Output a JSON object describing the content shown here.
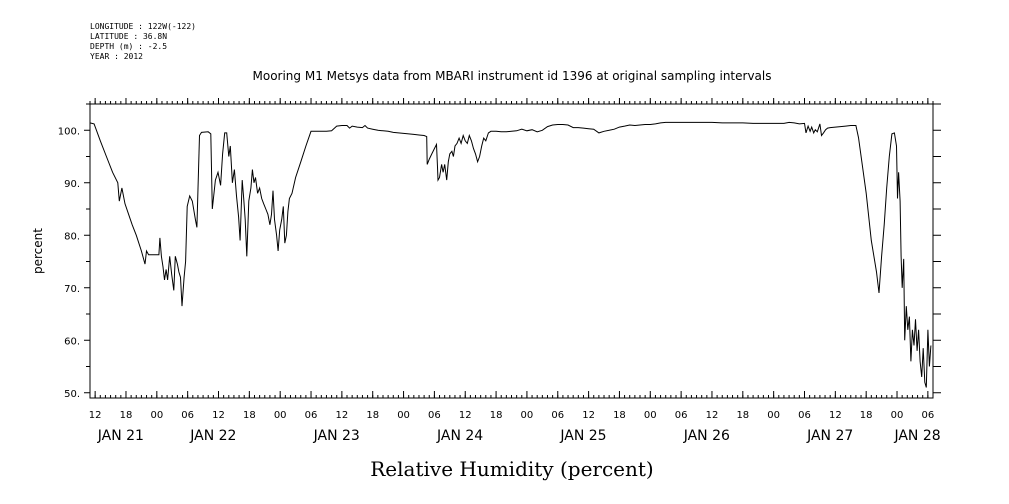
{
  "meta": {
    "longitude": "LONGITUDE : 122W(-122)",
    "latitude": "LATITUDE : 36.8N",
    "depth": "DEPTH (m) : -2.5",
    "year": "YEAR : 2012"
  },
  "chart_data": {
    "type": "line",
    "title": "Mooring M1 Metsys data from MBARI instrument id 1396 at original sampling intervals",
    "xlabel": "Relative Humidity (percent)",
    "ylabel": "percent",
    "ylim": [
      49,
      105
    ],
    "yticks": [
      50,
      60,
      70,
      80,
      90,
      100
    ],
    "ytick_labels": [
      "50.",
      "60.",
      "70.",
      "80.",
      "90.",
      "100."
    ],
    "xlim_hours_note": "x values are hours since JAN 21 00:00",
    "xlim": [
      -13,
      151
    ],
    "hour_ticks": [
      {
        "x": -12,
        "label": "12"
      },
      {
        "x": -6,
        "label": "18"
      },
      {
        "x": 0,
        "label": "00"
      },
      {
        "x": 6,
        "label": "06"
      },
      {
        "x": 12,
        "label": "12"
      },
      {
        "x": 18,
        "label": "18"
      },
      {
        "x": 24,
        "label": "00"
      },
      {
        "x": 30,
        "label": "06"
      },
      {
        "x": 36,
        "label": "12"
      },
      {
        "x": 42,
        "label": "18"
      },
      {
        "x": 48,
        "label": "00"
      },
      {
        "x": 54,
        "label": "06"
      },
      {
        "x": 60,
        "label": "12"
      },
      {
        "x": 66,
        "label": "18"
      },
      {
        "x": 72,
        "label": "00"
      },
      {
        "x": 78,
        "label": "06"
      },
      {
        "x": 84,
        "label": "12"
      },
      {
        "x": 90,
        "label": "18"
      },
      {
        "x": 96,
        "label": "00"
      },
      {
        "x": 102,
        "label": "06"
      },
      {
        "x": 108,
        "label": "12"
      },
      {
        "x": 114,
        "label": "18"
      },
      {
        "x": 120,
        "label": "00"
      },
      {
        "x": 126,
        "label": "06"
      },
      {
        "x": 132,
        "label": "12"
      },
      {
        "x": 138,
        "label": "18"
      },
      {
        "x": 144,
        "label": "00"
      },
      {
        "x": 150,
        "label": "06"
      }
    ],
    "day_labels": [
      {
        "x": -7,
        "label": "JAN 21"
      },
      {
        "x": 11,
        "label": "JAN 22"
      },
      {
        "x": 35,
        "label": "JAN 23"
      },
      {
        "x": 59,
        "label": "JAN 24"
      },
      {
        "x": 83,
        "label": "JAN 25"
      },
      {
        "x": 107,
        "label": "JAN 26"
      },
      {
        "x": 131,
        "label": "JAN 27"
      },
      {
        "x": 148,
        "label": "JAN 28"
      }
    ],
    "series": [
      {
        "color": "#000000",
        "points": [
          [
            -13,
            101.4
          ],
          [
            -12.2,
            101.2
          ],
          [
            -11,
            98
          ],
          [
            -9.8,
            95
          ],
          [
            -8.6,
            92
          ],
          [
            -7.6,
            90
          ],
          [
            -7.3,
            86.5
          ],
          [
            -6.8,
            89
          ],
          [
            -6.2,
            86
          ],
          [
            -5.5,
            84
          ],
          [
            -4.8,
            82
          ],
          [
            -4,
            80
          ],
          [
            -3,
            77
          ],
          [
            -2.3,
            74.5
          ],
          [
            -2,
            77
          ],
          [
            -1.6,
            76.3
          ],
          [
            -1,
            76.3
          ],
          [
            0,
            76.3
          ],
          [
            0.4,
            76.3
          ],
          [
            0.6,
            79.5
          ],
          [
            0.9,
            76
          ],
          [
            1.2,
            74
          ],
          [
            1.5,
            71.5
          ],
          [
            1.8,
            73.5
          ],
          [
            2.1,
            71.5
          ],
          [
            2.5,
            76
          ],
          [
            2.9,
            72.5
          ],
          [
            3.3,
            69.5
          ],
          [
            3.6,
            76
          ],
          [
            4,
            74.5
          ],
          [
            4.3,
            73
          ],
          [
            4.6,
            72
          ],
          [
            4.9,
            66.5
          ],
          [
            5.3,
            72
          ],
          [
            5.6,
            75
          ],
          [
            5.9,
            85.5
          ],
          [
            6.4,
            87.5
          ],
          [
            6.9,
            86.5
          ],
          [
            7.5,
            83
          ],
          [
            7.8,
            81.5
          ],
          [
            8.3,
            99
          ],
          [
            8.7,
            99.6
          ],
          [
            10,
            99.7
          ],
          [
            10.5,
            99.3
          ],
          [
            10.8,
            85
          ],
          [
            11.4,
            90.5
          ],
          [
            11.9,
            92
          ],
          [
            12.4,
            89.5
          ],
          [
            12.8,
            95.5
          ],
          [
            13.2,
            99.5
          ],
          [
            13.6,
            99.5
          ],
          [
            14,
            95
          ],
          [
            14.3,
            97
          ],
          [
            14.7,
            90
          ],
          [
            15.1,
            92.5
          ],
          [
            15.5,
            87.5
          ],
          [
            15.9,
            83.5
          ],
          [
            16.2,
            79
          ],
          [
            16.6,
            90.5
          ],
          [
            16.9,
            87
          ],
          [
            17.2,
            83
          ],
          [
            17.5,
            76
          ],
          [
            17.9,
            86.5
          ],
          [
            18.3,
            89
          ],
          [
            18.6,
            92.5
          ],
          [
            18.9,
            90
          ],
          [
            19.2,
            91
          ],
          [
            19.6,
            88
          ],
          [
            20,
            89
          ],
          [
            20.4,
            87
          ],
          [
            20.8,
            86
          ],
          [
            21.2,
            85
          ],
          [
            21.6,
            84
          ],
          [
            22,
            82
          ],
          [
            22.3,
            84
          ],
          [
            22.6,
            88.5
          ],
          [
            22.9,
            83
          ],
          [
            23.3,
            80
          ],
          [
            23.6,
            77
          ],
          [
            23.9,
            81
          ],
          [
            24.3,
            83
          ],
          [
            24.6,
            85.5
          ],
          [
            24.9,
            78.5
          ],
          [
            25.2,
            80
          ],
          [
            25.5,
            84.5
          ],
          [
            25.8,
            87
          ],
          [
            26.3,
            88
          ],
          [
            27,
            91
          ],
          [
            28,
            94
          ],
          [
            29,
            97
          ],
          [
            30,
            99.8
          ],
          [
            31,
            99.8
          ],
          [
            32,
            99.8
          ],
          [
            33,
            99.8
          ],
          [
            34,
            99.9
          ],
          [
            35,
            100.8
          ],
          [
            36,
            100.9
          ],
          [
            37,
            100.9
          ],
          [
            37.5,
            100.4
          ],
          [
            38,
            100.8
          ],
          [
            39,
            100.6
          ],
          [
            40,
            100.5
          ],
          [
            40.5,
            100.9
          ],
          [
            41,
            100.4
          ],
          [
            42,
            100.2
          ],
          [
            43,
            100
          ],
          [
            44,
            99.9
          ],
          [
            45,
            99.8
          ],
          [
            46,
            99.6
          ],
          [
            47,
            99.5
          ],
          [
            48,
            99.4
          ],
          [
            49,
            99.3
          ],
          [
            50,
            99.2
          ],
          [
            51,
            99.1
          ],
          [
            52,
            99
          ],
          [
            52.5,
            98.8
          ],
          [
            52.6,
            93.5
          ],
          [
            53,
            94.5
          ],
          [
            53.5,
            95.5
          ],
          [
            54,
            96.5
          ],
          [
            54.4,
            97.3
          ],
          [
            54.6,
            93
          ],
          [
            54.7,
            90.5
          ],
          [
            55,
            91
          ],
          [
            55.4,
            93.5
          ],
          [
            55.7,
            92
          ],
          [
            56,
            93.5
          ],
          [
            56.4,
            90.5
          ],
          [
            56.7,
            94
          ],
          [
            57,
            95.5
          ],
          [
            57.4,
            96
          ],
          [
            57.7,
            95
          ],
          [
            58,
            97
          ],
          [
            58.4,
            97.5
          ],
          [
            58.8,
            98.5
          ],
          [
            59.2,
            97.5
          ],
          [
            59.6,
            99
          ],
          [
            60,
            98
          ],
          [
            60.4,
            97.5
          ],
          [
            60.8,
            99
          ],
          [
            61.2,
            98
          ],
          [
            61.6,
            96.5
          ],
          [
            62,
            95.5
          ],
          [
            62.4,
            94
          ],
          [
            62.8,
            95
          ],
          [
            63.2,
            97
          ],
          [
            63.6,
            98.5
          ],
          [
            64,
            98
          ],
          [
            64.5,
            99.5
          ],
          [
            65,
            99.8
          ],
          [
            66,
            99.8
          ],
          [
            67,
            99.7
          ],
          [
            68,
            99.7
          ],
          [
            69,
            99.8
          ],
          [
            70,
            99.9
          ],
          [
            71,
            100.2
          ],
          [
            72,
            99.9
          ],
          [
            73,
            100.1
          ],
          [
            74,
            99.7
          ],
          [
            75,
            100
          ],
          [
            76,
            100.7
          ],
          [
            77,
            101
          ],
          [
            78,
            101.1
          ],
          [
            79,
            101.1
          ],
          [
            80,
            101
          ],
          [
            81,
            100.5
          ],
          [
            82,
            100.5
          ],
          [
            83,
            100.4
          ],
          [
            84,
            100.3
          ],
          [
            85,
            100.2
          ],
          [
            86,
            99.5
          ],
          [
            87,
            99.8
          ],
          [
            88,
            100
          ],
          [
            89,
            100.2
          ],
          [
            90,
            100.6
          ],
          [
            91,
            100.8
          ],
          [
            92,
            101
          ],
          [
            93,
            100.9
          ],
          [
            94,
            101
          ],
          [
            95,
            101.1
          ],
          [
            96,
            101.1
          ],
          [
            97,
            101.2
          ],
          [
            98,
            101.4
          ],
          [
            99,
            101.5
          ],
          [
            100,
            101.5
          ],
          [
            102,
            101.5
          ],
          [
            104,
            101.5
          ],
          [
            106,
            101.5
          ],
          [
            108,
            101.5
          ],
          [
            110,
            101.4
          ],
          [
            112,
            101.4
          ],
          [
            114,
            101.4
          ],
          [
            116,
            101.3
          ],
          [
            118,
            101.3
          ],
          [
            120,
            101.3
          ],
          [
            122,
            101.3
          ],
          [
            123,
            101.5
          ],
          [
            124,
            101.4
          ],
          [
            125,
            101.2
          ],
          [
            126,
            101.3
          ],
          [
            126.3,
            99.5
          ],
          [
            126.7,
            100.8
          ],
          [
            127.1,
            99.8
          ],
          [
            127.4,
            100.6
          ],
          [
            127.8,
            99.5
          ],
          [
            128.1,
            100.1
          ],
          [
            128.5,
            99.7
          ],
          [
            129,
            101.2
          ],
          [
            129.3,
            99
          ],
          [
            129.7,
            99.5
          ],
          [
            130.1,
            100.1
          ],
          [
            130.5,
            100.4
          ],
          [
            131,
            100.5
          ],
          [
            132,
            100.6
          ],
          [
            133,
            100.7
          ],
          [
            134,
            100.8
          ],
          [
            135,
            100.9
          ],
          [
            136,
            100.9
          ],
          [
            136.5,
            98.6
          ],
          [
            138,
            88
          ],
          [
            139,
            79
          ],
          [
            140,
            73
          ],
          [
            140.5,
            69
          ],
          [
            141,
            76
          ],
          [
            141.5,
            82
          ],
          [
            142,
            89
          ],
          [
            142.5,
            95
          ],
          [
            143,
            99.3
          ],
          [
            143.5,
            99.5
          ],
          [
            143.9,
            97
          ],
          [
            144.1,
            87
          ],
          [
            144.3,
            92
          ],
          [
            144.6,
            86.5
          ],
          [
            144.8,
            76
          ],
          [
            145,
            70
          ],
          [
            145.3,
            75.5
          ],
          [
            145.5,
            60
          ],
          [
            145.8,
            66.5
          ],
          [
            146.1,
            62
          ],
          [
            146.4,
            64.5
          ],
          [
            146.7,
            56
          ],
          [
            147,
            62
          ],
          [
            147.3,
            59
          ],
          [
            147.6,
            64
          ],
          [
            147.9,
            58
          ],
          [
            148.2,
            62
          ],
          [
            148.5,
            56
          ],
          [
            148.8,
            53
          ],
          [
            149.1,
            58.5
          ],
          [
            149.4,
            52
          ],
          [
            149.7,
            51
          ],
          [
            150,
            62
          ],
          [
            150.3,
            55
          ],
          [
            150.6,
            59
          ]
        ]
      }
    ]
  }
}
